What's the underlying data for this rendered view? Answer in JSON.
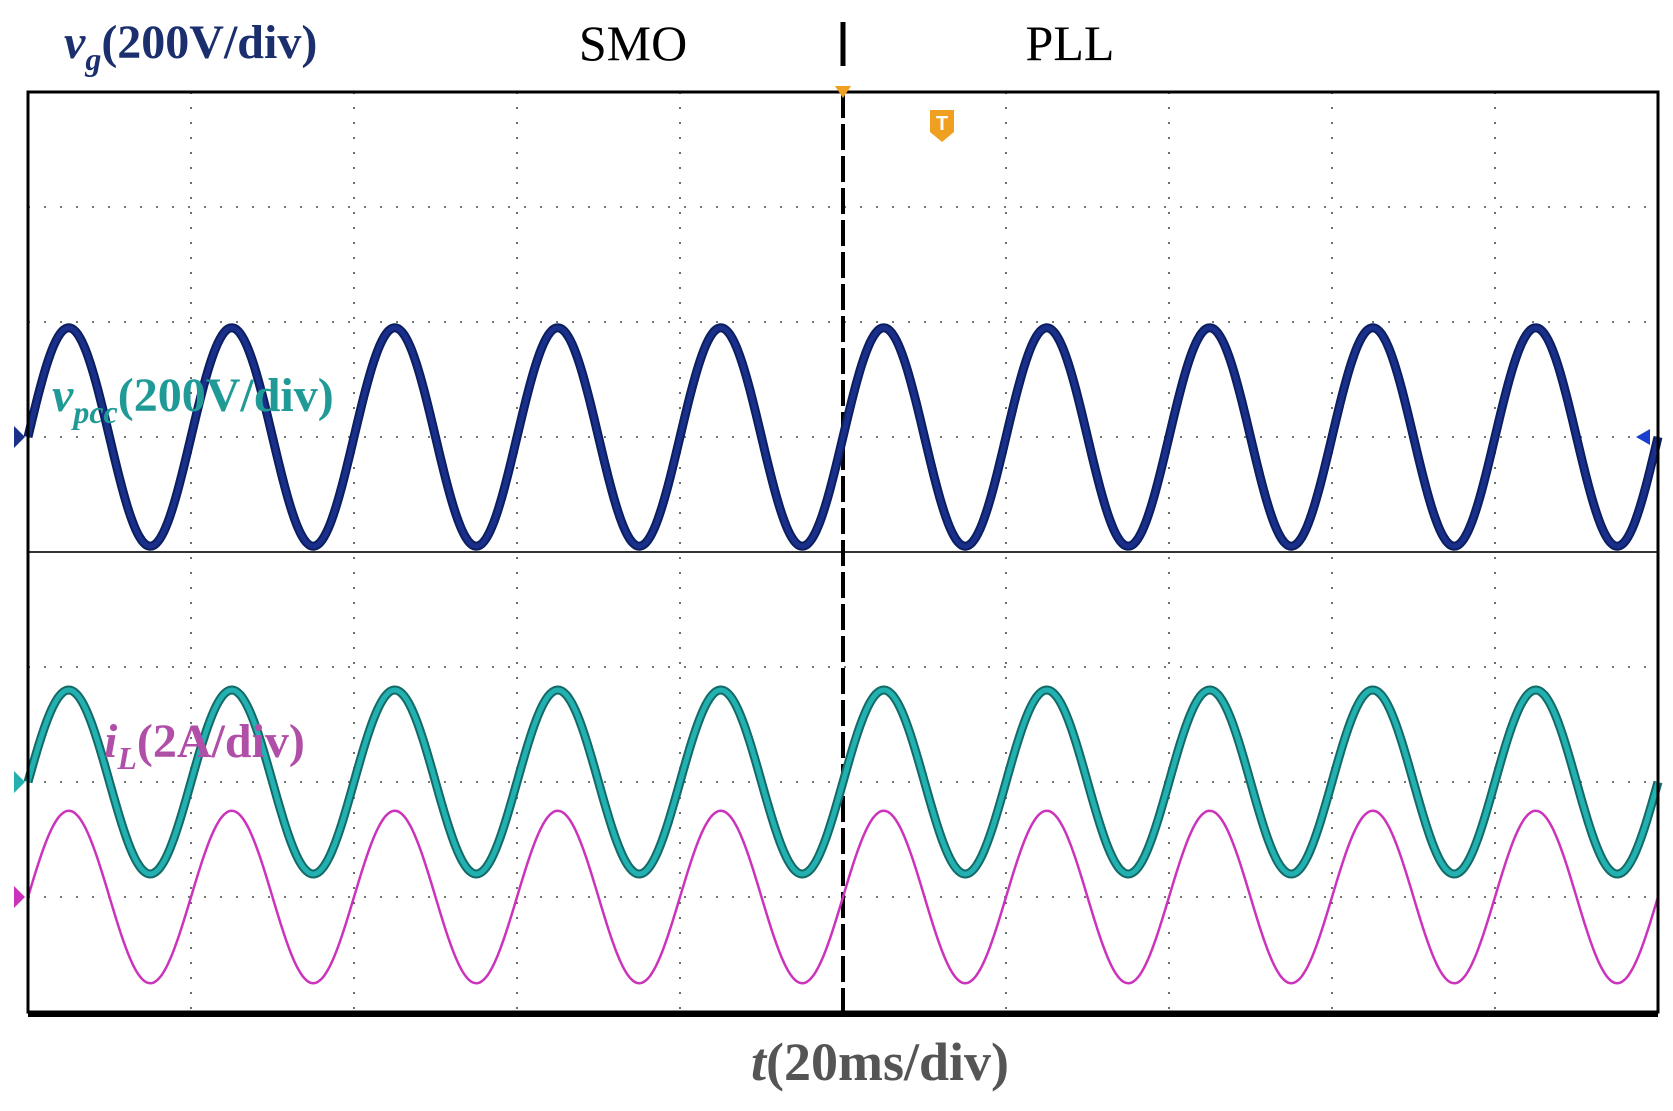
{
  "chart_data": {
    "type": "line",
    "title": "",
    "regions": {
      "left": "SMO",
      "right": "PLL",
      "switch_at_div": 5
    },
    "xlabel": {
      "var": "t",
      "unit": "(20ms/div)"
    },
    "x_divisions": 10,
    "y_divisions": 8,
    "x_unit": "ms",
    "x_per_div": 20,
    "frequency_hz": 50,
    "cycles_per_div": 1,
    "x_range": [
      0,
      200
    ],
    "series": [
      {
        "name": "vg",
        "label_var": "v",
        "label_sub": "g",
        "label_unit": "(200V/div)",
        "color": "#1a2f8a",
        "label_color": "#1b2f6e",
        "ref_div": 5.0,
        "amplitude_div": 0.95,
        "phase_deg": 0
      },
      {
        "name": "vpcc",
        "label_var": "v",
        "label_sub": "pcc",
        "label_unit": "(200V/div)",
        "color": "#22b0b0",
        "label_color": "#1f9a96",
        "ref_div": 2.0,
        "amplitude_div": 0.8,
        "phase_deg": 0
      },
      {
        "name": "iL",
        "label_var": "i",
        "label_sub": "L",
        "label_unit": "(2A/div)",
        "color": "#cc33bb",
        "label_color": "#b04fa8",
        "ref_div": 1.0,
        "amplitude_div": 0.75,
        "phase_deg": 0
      }
    ],
    "colors": {
      "grid": "#4a4a4a",
      "frame": "#000000",
      "trigger": "#f0a020",
      "xlabel": "#555555"
    },
    "trigger_marker": "T"
  }
}
